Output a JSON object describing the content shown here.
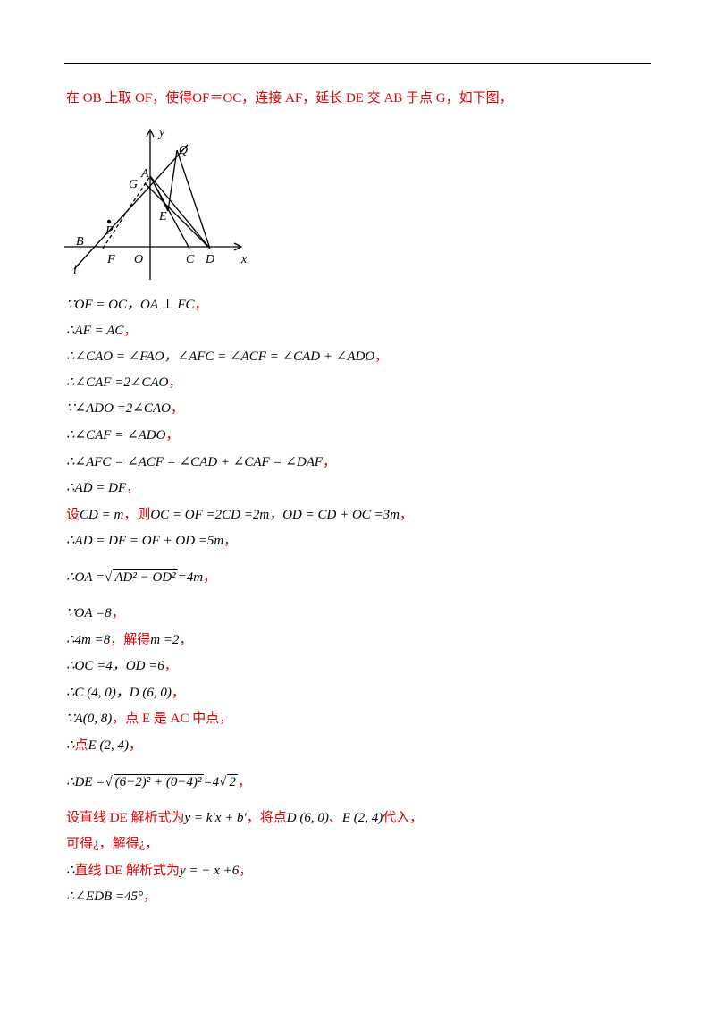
{
  "figure": {
    "labels": [
      "y",
      "Q",
      "A",
      "G",
      "E",
      "B",
      "P",
      "l",
      "F",
      "O",
      "C",
      "D",
      "x"
    ]
  },
  "lines": [
    [
      "在 OB 上取 OF，使得OF＝OC，连接 AF，延长 DE 交 AB 于点 G，如下图，"
    ],
    [
      "∵OF = OC，OA ⊥ FC",
      "，"
    ],
    [
      "∴AF = AC",
      "，"
    ],
    [
      "∴∠CAO = ∠FAO，∠AFC = ∠ACF = ∠CAD + ∠ADO",
      "，"
    ],
    [
      "∴∠CAF =2∠CAO",
      "，"
    ],
    [
      "∵∠ADO =2∠CAO",
      "，"
    ],
    [
      "∴∠CAF = ∠ADO",
      "，"
    ],
    [
      "∴∠AFC = ∠ACF = ∠CAD + ∠CAF = ∠DAF",
      "，"
    ],
    [
      "∴AD = DF",
      "，"
    ],
    [
      "设",
      "CD = m",
      "，则",
      "OC = OF =2CD =2m，OD = CD + OC =3m",
      "，"
    ],
    [
      "∴AD = DF = OF + OD =5m",
      "，"
    ],
    [
      "∴OA =",
      "AD² − OD²",
      "=4m",
      "，"
    ],
    [
      "∵OA =8",
      "，"
    ],
    [
      "∴4m =8",
      "，解得",
      "m =2",
      "，"
    ],
    [
      "∴OC =4，OD =6",
      "，"
    ],
    [
      "∴C (4, 0)，D (6, 0)",
      "，"
    ],
    [
      "∵A(0, 8)",
      "，点 E 是 AC 中点，"
    ],
    [
      "∴",
      "点",
      "E (2, 4)",
      "，"
    ],
    [
      "∴DE =",
      "(6−2)² + (0−4)²",
      "=4",
      "2",
      "，"
    ],
    [
      "设直线 DE 解析式为",
      "y = k′x + b′",
      "，将点",
      "D (6, 0)",
      "、",
      "E (2, 4)",
      "代入，"
    ],
    [
      "可得¿，解得¿，"
    ],
    [
      "∴",
      "直线 DE 解析式为",
      "y = − x +6",
      "，"
    ],
    [
      "∴∠EDB =45°",
      "，"
    ]
  ]
}
